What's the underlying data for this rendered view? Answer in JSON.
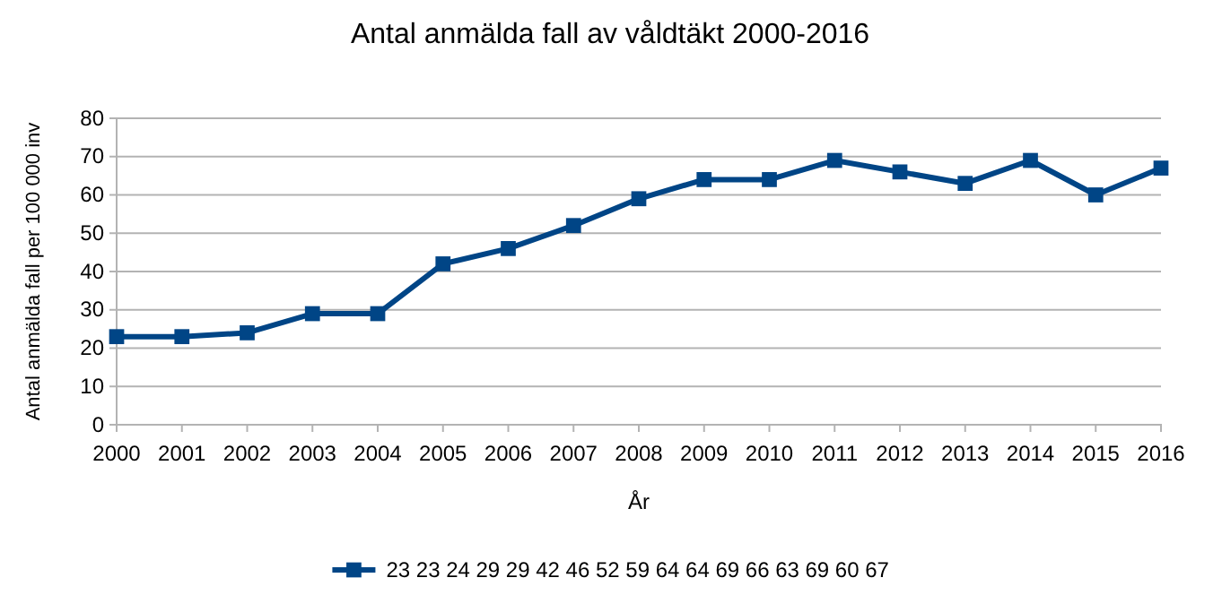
{
  "chart_data": {
    "type": "line",
    "title": "Antal anmälda fall av våldtäkt 2000-2016",
    "xlabel": "År",
    "ylabel": "Antal anmälda fall per 100 000 inv",
    "x": [
      2000,
      2001,
      2002,
      2003,
      2004,
      2005,
      2006,
      2007,
      2008,
      2009,
      2010,
      2011,
      2012,
      2013,
      2014,
      2015,
      2016
    ],
    "series": [
      {
        "name": "23 23 24 29 29 42 46 52 59 64 64 69 66 63 69 60 67",
        "color": "#004586",
        "values": [
          23,
          23,
          24,
          29,
          29,
          42,
          46,
          52,
          59,
          64,
          64,
          69,
          66,
          63,
          69,
          60,
          67
        ]
      }
    ],
    "xlim": [
      2000,
      2016
    ],
    "xticks": [
      2000,
      2001,
      2002,
      2003,
      2004,
      2005,
      2006,
      2007,
      2008,
      2009,
      2010,
      2011,
      2012,
      2013,
      2014,
      2015,
      2016
    ],
    "ylim": [
      0,
      80
    ],
    "yticks": [
      0,
      10,
      20,
      30,
      40,
      50,
      60,
      70,
      80
    ],
    "grid": "y",
    "legend": "bottom",
    "marker": "square",
    "line_style": "solid"
  }
}
